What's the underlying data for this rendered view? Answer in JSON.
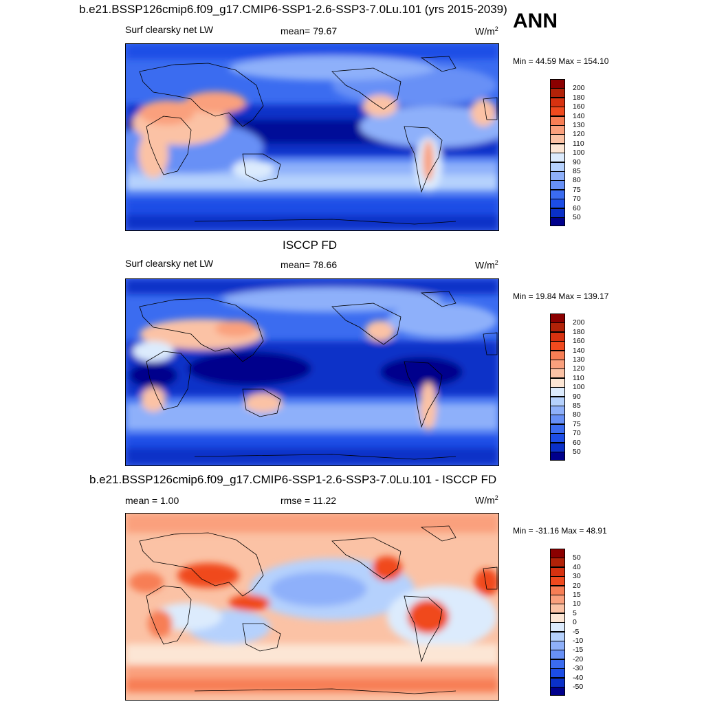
{
  "season": "ANN",
  "panels": [
    {
      "id": "model",
      "title": "b.e21.BSSP126cmip6.f09_g17.CMIP6-SSP1-2.6-SSP3-7.0Lu.101 (yrs 2015-2039)",
      "left_label": "Surf clearsky net LW",
      "center_label": "mean=  79.67",
      "unit": "W/m",
      "unit_sup": "2",
      "minmax": "Min =  44.59 Max = 154.10",
      "colorbar": {
        "colors": [
          "#8B0000",
          "#B22208",
          "#D73210",
          "#F04A1E",
          "#F77E55",
          "#FAA07D",
          "#FBC2A5",
          "#FCE6D5",
          "#DCEBFD",
          "#B5D1FD",
          "#8EB0FA",
          "#6790F6",
          "#3B6CF0",
          "#1C4DE6",
          "#0A30C8",
          "#00008C"
        ],
        "ticks": [
          "200",
          "180",
          "160",
          "140",
          "130",
          "120",
          "110",
          "100",
          "90",
          "85",
          "80",
          "75",
          "70",
          "60",
          "50"
        ]
      }
    },
    {
      "id": "obs",
      "title": "ISCCP FD",
      "left_label": "Surf clearsky net LW",
      "center_label": "mean=  78.66",
      "unit": "W/m",
      "unit_sup": "2",
      "minmax": "Min =  19.84 Max = 139.17",
      "colorbar": {
        "colors": [
          "#8B0000",
          "#B22208",
          "#D73210",
          "#F04A1E",
          "#F77E55",
          "#FAA07D",
          "#FBC2A5",
          "#FCE6D5",
          "#DCEBFD",
          "#B5D1FD",
          "#8EB0FA",
          "#6790F6",
          "#3B6CF0",
          "#1C4DE6",
          "#0A30C8",
          "#00008C"
        ],
        "ticks": [
          "200",
          "180",
          "160",
          "140",
          "130",
          "120",
          "110",
          "100",
          "90",
          "85",
          "80",
          "75",
          "70",
          "60",
          "50"
        ]
      }
    },
    {
      "id": "diff",
      "title": "b.e21.BSSP126cmip6.f09_g17.CMIP6-SSP1-2.6-SSP3-7.0Lu.101 - ISCCP FD",
      "left_label": "mean =   1.00",
      "center_label": "rmse =  11.22",
      "unit": "W/m",
      "unit_sup": "2",
      "minmax": "Min = -31.16 Max =  48.91",
      "colorbar": {
        "colors": [
          "#8B0000",
          "#B22208",
          "#D73210",
          "#F04A1E",
          "#F77E55",
          "#FAA07D",
          "#FBC2A5",
          "#FCE6D5",
          "#DCEBFD",
          "#B5D1FD",
          "#8EB0FA",
          "#6790F6",
          "#3B6CF0",
          "#1C4DE6",
          "#0A30C8",
          "#00008C"
        ],
        "ticks": [
          "50",
          "40",
          "30",
          "20",
          "15",
          "10",
          "5",
          "0",
          "-5",
          "-10",
          "-15",
          "-20",
          "-30",
          "-40",
          "-50"
        ]
      }
    }
  ]
}
